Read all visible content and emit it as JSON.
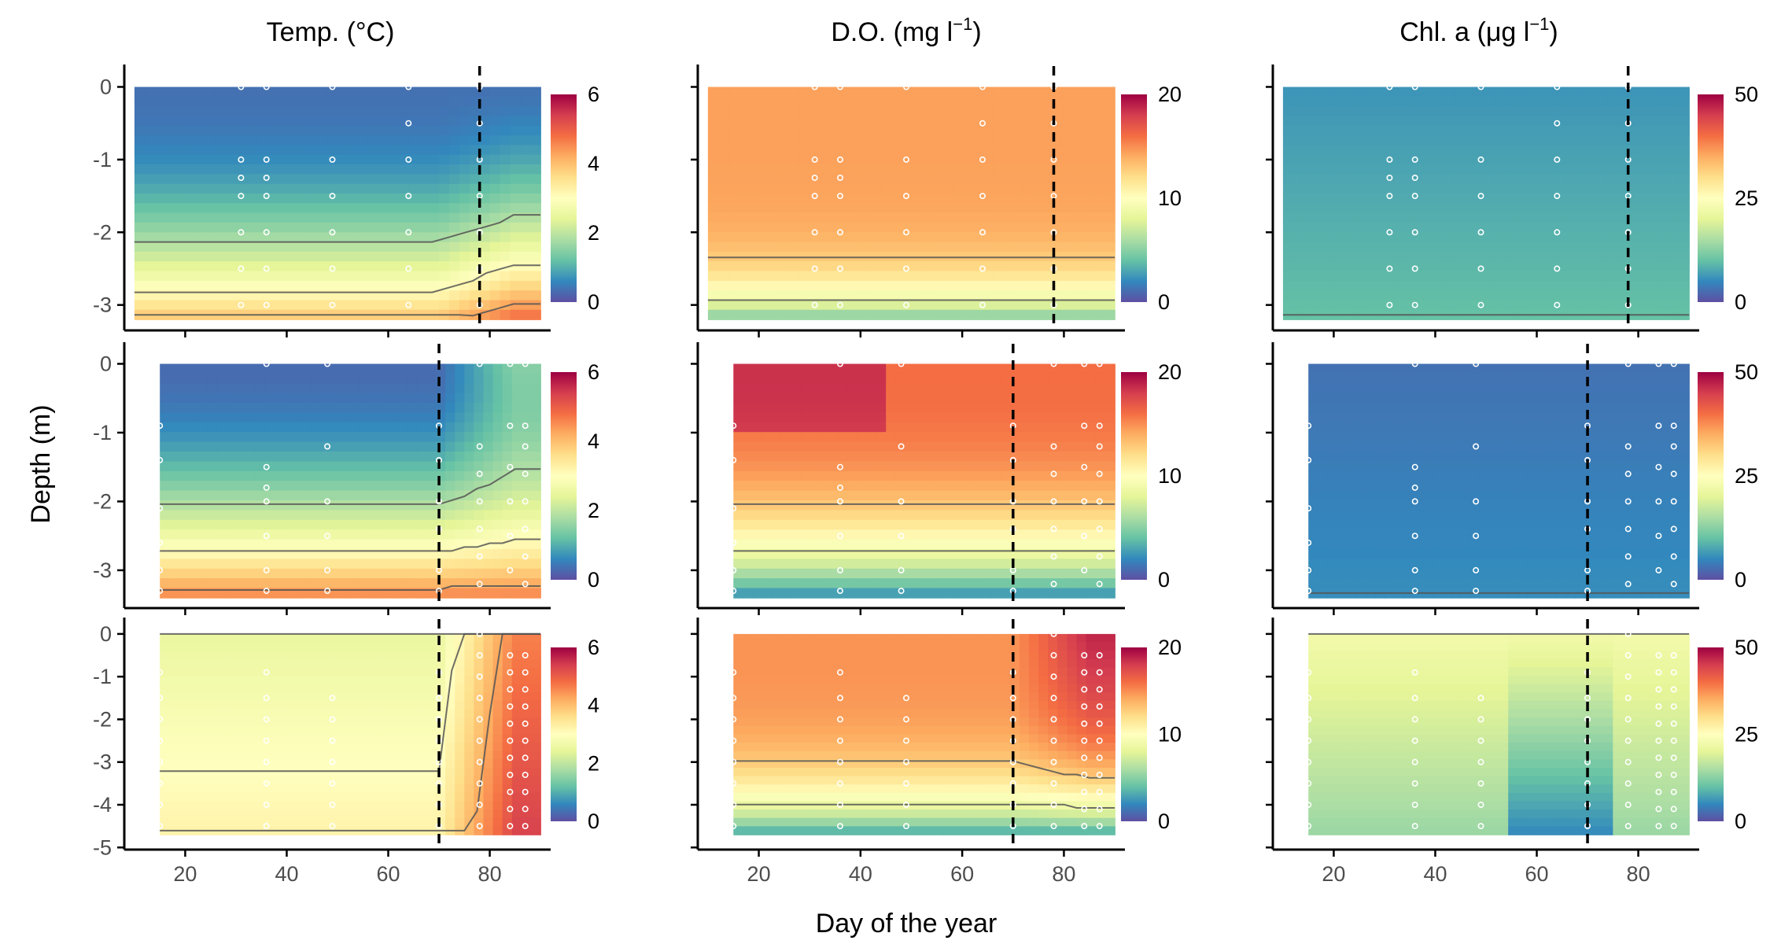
{
  "chart_data": {
    "type": "heatmap",
    "layout": "3x3 grid of depth-time contour heatmaps (rows = sites, columns = variables)",
    "xlabel": "Day of the year",
    "ylabel": "Depth (m)",
    "x_ticks": [
      20,
      40,
      60,
      80
    ],
    "xlim": [
      8,
      92
    ],
    "colormap": [
      "#5E4FA2",
      "#3288BD",
      "#66C2A5",
      "#ABDDA4",
      "#E6F598",
      "#FFFFBF",
      "#FEE08B",
      "#FDAE61",
      "#F46D43",
      "#D53E4F",
      "#9E0142"
    ],
    "columns": [
      {
        "key": "temp",
        "title_prefix": "Temp. ",
        "title_main": "(°C)",
        "title_sup": "",
        "title_suffix": "",
        "scale": [
          0,
          6
        ],
        "ticks": [
          0,
          2,
          4,
          6
        ]
      },
      {
        "key": "do",
        "title_prefix": "D.O. ",
        "title_main": "(mg l",
        "title_sup": "−1",
        "title_suffix": ")",
        "scale": [
          0,
          20
        ],
        "ticks": [
          0,
          10,
          20
        ]
      },
      {
        "key": "chl",
        "title_prefix": "Chl. a ",
        "title_main": "(μg l",
        "title_sup": "−1",
        "title_suffix": ")",
        "scale": [
          0,
          50
        ],
        "ticks": [
          0,
          25,
          50
        ]
      }
    ],
    "rows": [
      {
        "name": "row 1",
        "ylim": [
          -3.35,
          0.2
        ],
        "y_ticks": [
          0,
          -1,
          -2,
          -3
        ],
        "x_start": 10,
        "x_end": 90,
        "bottom_depth": -3.2,
        "event_day": 78,
        "profile_days": [
          31,
          36,
          49,
          64,
          78
        ],
        "profile_depths": [
          [
            0,
            -1,
            -1.25,
            -1.5,
            -2,
            -2.5,
            -3
          ],
          [
            0,
            -1,
            -1.25,
            -1.5,
            -2,
            -2.5,
            -3
          ],
          [
            0,
            -1,
            -1.5,
            -2,
            -2.5,
            -3
          ],
          [
            0,
            -0.5,
            -1,
            -1.5,
            -2,
            -2.5,
            -3
          ],
          [
            0,
            -0.5,
            -1,
            -1.5,
            -2,
            -2.5,
            -3
          ]
        ]
      },
      {
        "name": "row 2",
        "ylim": [
          -3.55,
          0.2
        ],
        "y_ticks": [
          0,
          -1,
          -2,
          -3
        ],
        "x_start": 15,
        "x_end": 90,
        "bottom_depth": -3.4,
        "event_day": 70,
        "profile_days": [
          15,
          36,
          48,
          70,
          78,
          84,
          87
        ],
        "profile_depths": [
          [
            -0.9,
            -1.4,
            -2.1,
            -2.6,
            -3.0,
            -3.3
          ],
          [
            0,
            -1.5,
            -1.8,
            -2.0,
            -2.5,
            -3.0,
            -3.3
          ],
          [
            0,
            -1.2,
            -2,
            -2.5,
            -3,
            -3.3
          ],
          [
            -0.9,
            -1.4,
            -2.0,
            -2.4,
            -3.0,
            -3.3
          ],
          [
            0,
            -1.2,
            -1.6,
            -2,
            -2.4,
            -2.8,
            -3.2
          ],
          [
            0,
            -0.9,
            -1.5,
            -2,
            -2.5,
            -3.0
          ],
          [
            0,
            -0.9,
            -1.2,
            -1.6,
            -2,
            -2.4,
            -2.8,
            -3.2
          ]
        ]
      },
      {
        "name": "row 3",
        "ylim": [
          -5.05,
          0.2
        ],
        "y_ticks": [
          0,
          -1,
          -2,
          -3,
          -4,
          -5
        ],
        "x_start": 15,
        "x_end": 90,
        "bottom_depth": -4.7,
        "event_day": 70,
        "profile_days": [
          15,
          36,
          49,
          70,
          78,
          84,
          87
        ],
        "profile_depths": [
          [
            -0.9,
            -1.5,
            -2,
            -2.5,
            -3,
            -3.5,
            -4,
            -4.5
          ],
          [
            -0.9,
            -1.5,
            -2,
            -2.5,
            -3,
            -3.5,
            -4,
            -4.5
          ],
          [
            -1.5,
            -2,
            -2.5,
            -3,
            -3.5,
            -4,
            -4.5
          ],
          [
            -0.9,
            -1.5,
            -2,
            -2.5,
            -3,
            -3.5,
            -4,
            -4.5
          ],
          [
            0,
            -0.5,
            -1,
            -1.5,
            -2,
            -2.5,
            -3,
            -3.5,
            -4,
            -4.5
          ],
          [
            -0.5,
            -0.9,
            -1.3,
            -1.7,
            -2.1,
            -2.5,
            -2.9,
            -3.3,
            -3.7,
            -4.1,
            -4.5
          ],
          [
            -0.5,
            -0.9,
            -1.3,
            -1.7,
            -2.1,
            -2.5,
            -2.9,
            -3.3,
            -3.7,
            -4.1,
            -4.5
          ]
        ]
      }
    ]
  }
}
